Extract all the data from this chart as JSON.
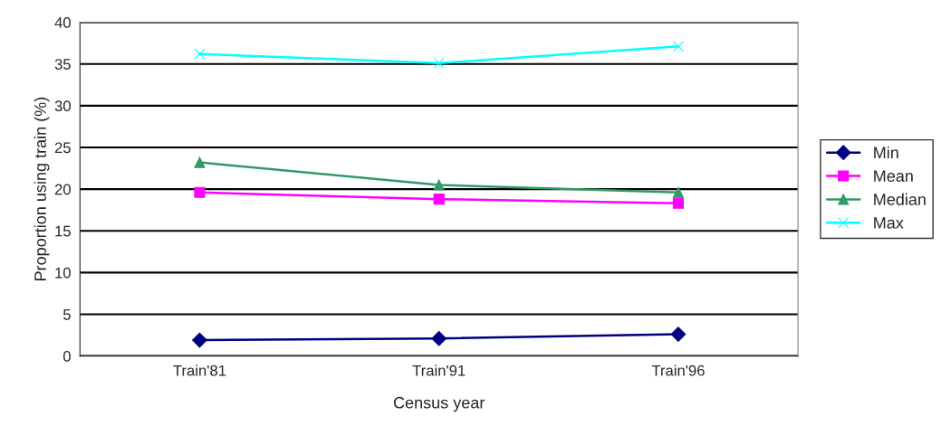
{
  "chart_data": {
    "type": "line",
    "xlabel": "Census year",
    "ylabel": "Proportion using train (%)",
    "categories": [
      "Train'81",
      "Train'91",
      "Train'96"
    ],
    "series": [
      {
        "name": "Min",
        "color": "#000080",
        "marker": "diamond",
        "values": [
          1.9,
          2.1,
          2.6
        ]
      },
      {
        "name": "Mean",
        "color": "#ff00ff",
        "marker": "square",
        "values": [
          19.6,
          18.8,
          18.3
        ]
      },
      {
        "name": "Median",
        "color": "#339966",
        "marker": "triangle",
        "values": [
          23.2,
          20.5,
          19.6
        ]
      },
      {
        "name": "Max",
        "color": "#00ffff",
        "marker": "cross",
        "values": [
          36.2,
          35.1,
          37.1
        ]
      }
    ],
    "ylim": [
      0,
      40
    ],
    "yticks": [
      0,
      5,
      10,
      15,
      20,
      25,
      30,
      35,
      40
    ],
    "grid": "y",
    "legend": "right"
  }
}
